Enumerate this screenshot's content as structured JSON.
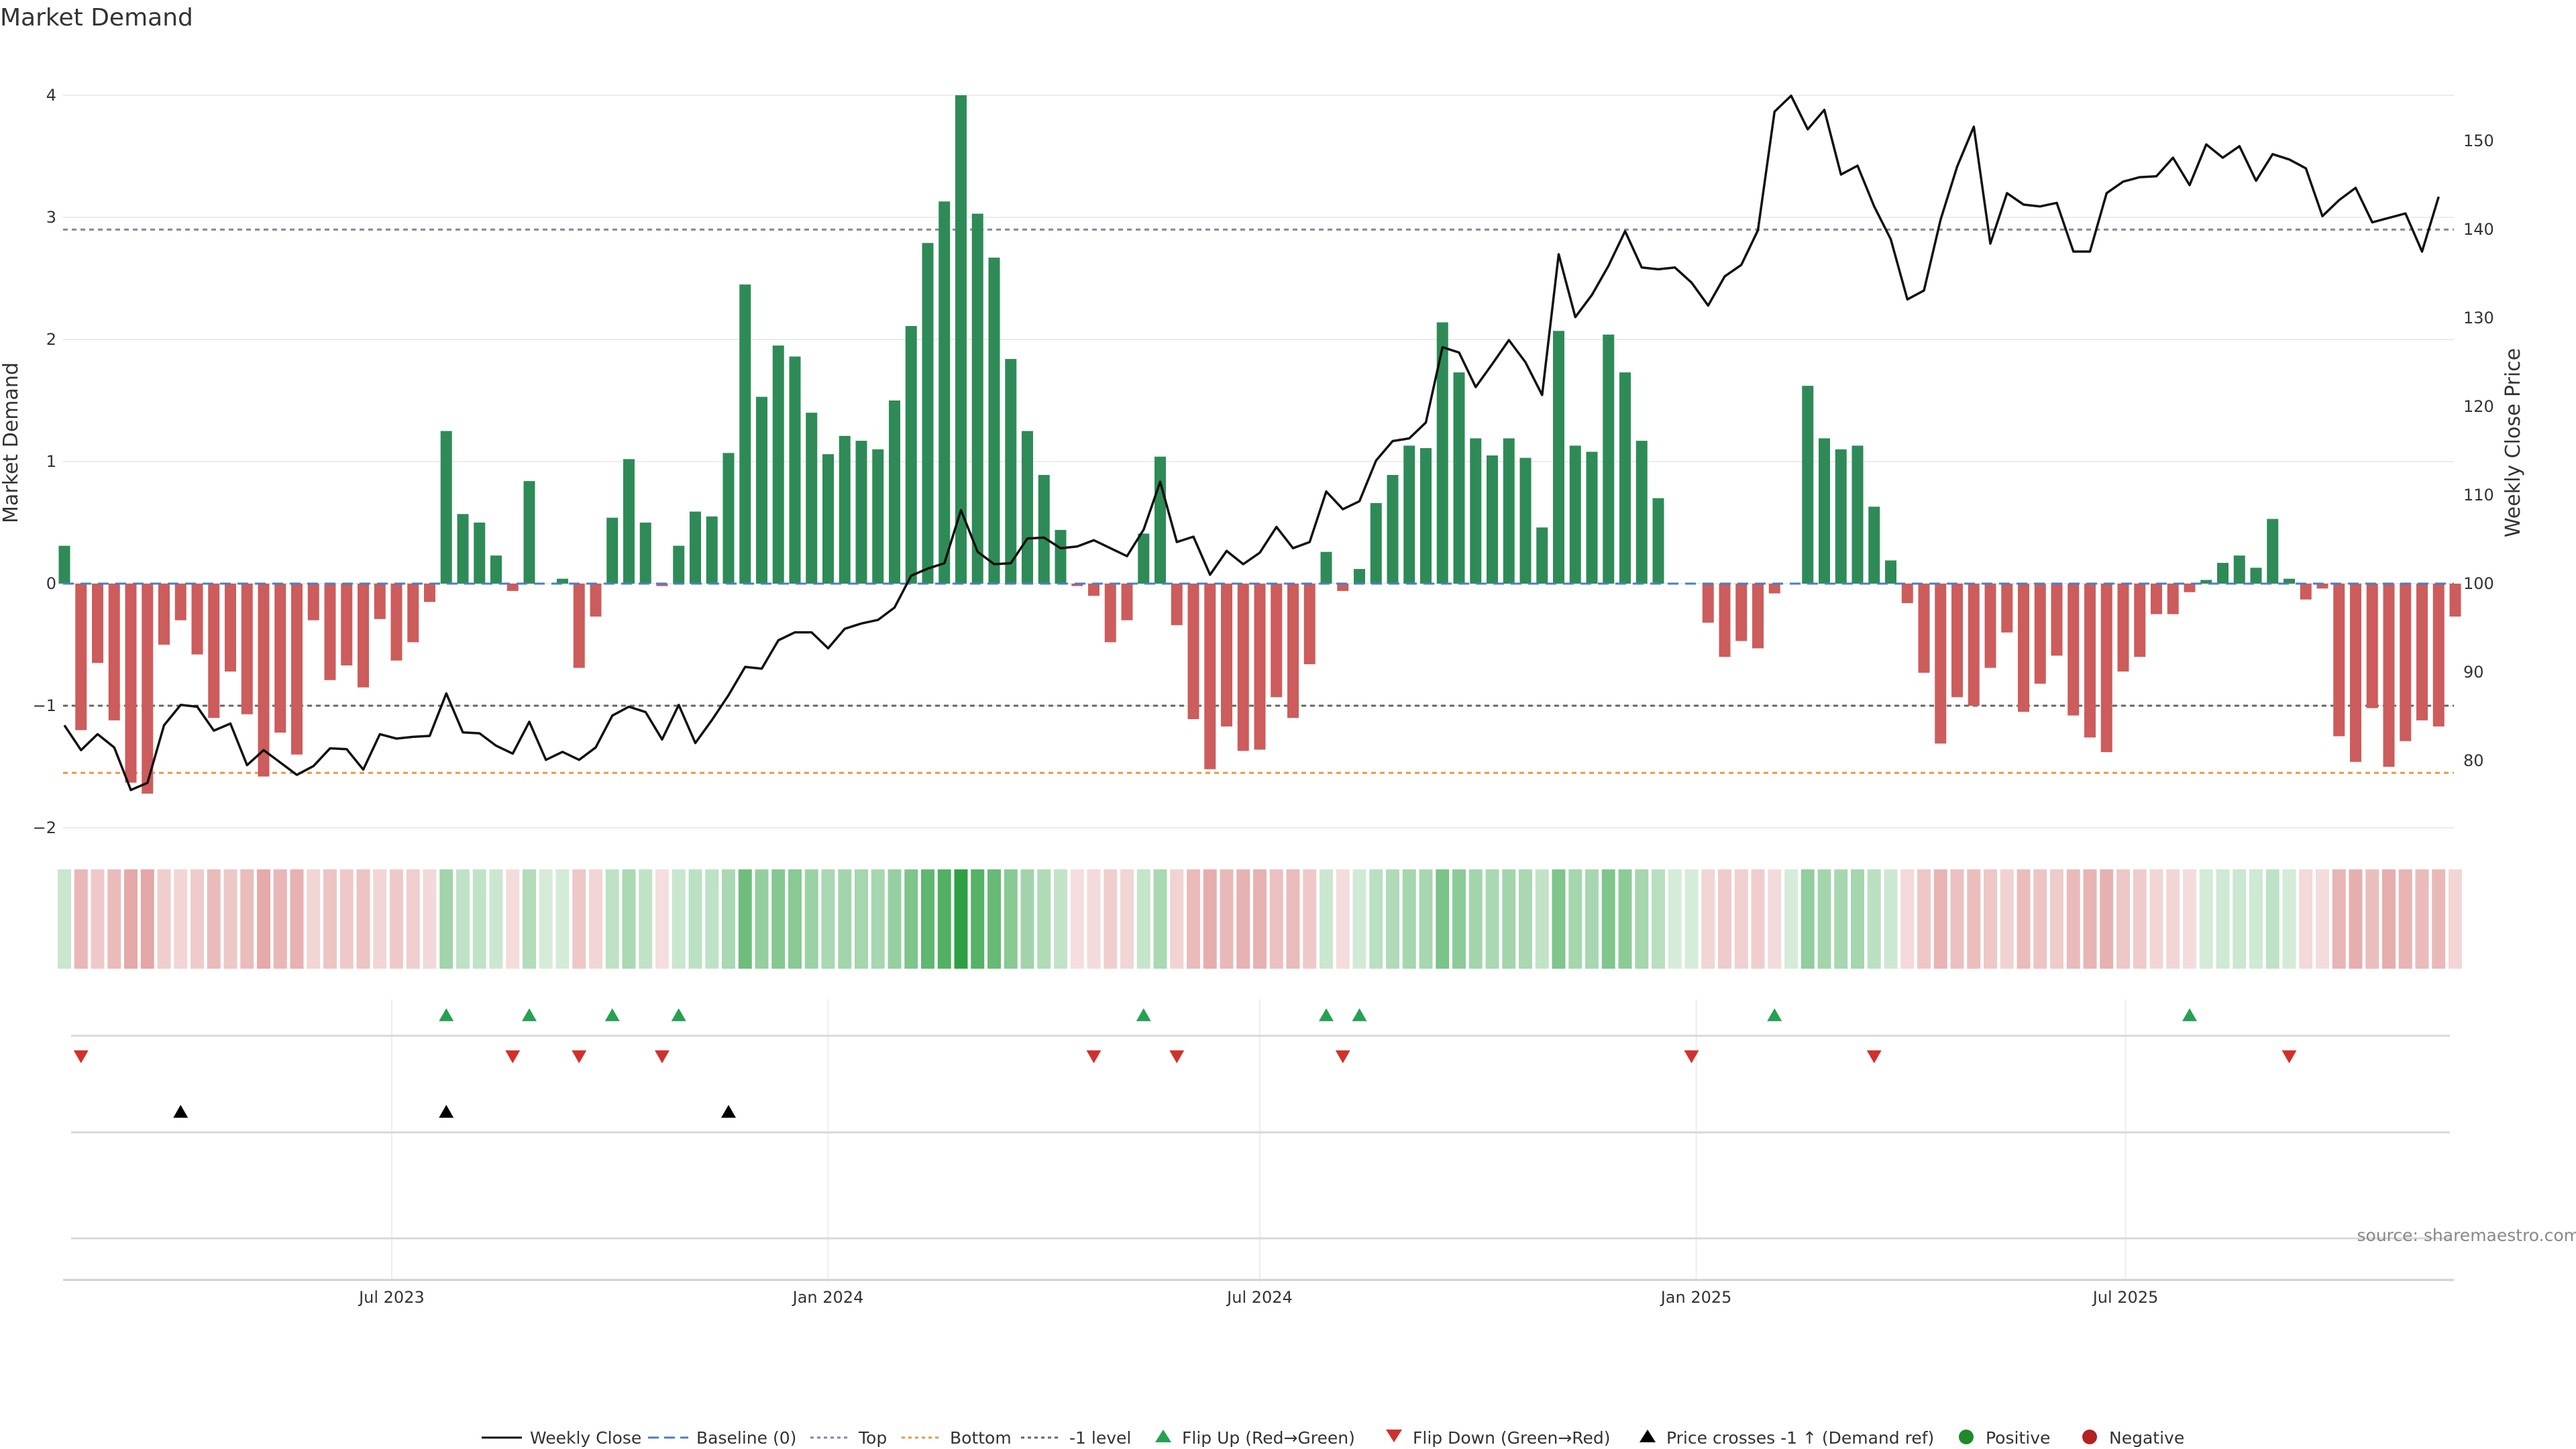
{
  "chart_data": {
    "type": "bar",
    "title": "Market Demand",
    "ylabel_left": "Market Demand",
    "ylabel_right": "Weekly Close Price",
    "source": "source: sharemaestro.com",
    "x_start_date": "2023-02-13",
    "x_step_days": 7,
    "left_ylim": [
      -2,
      4
    ],
    "left_yticks": [
      "−2",
      "−1",
      "0",
      "1",
      "2",
      "3",
      "4"
    ],
    "right_ylim": [
      72.6,
      155.3
    ],
    "right_yticks": [
      "80",
      "90",
      "100",
      "110",
      "120",
      "130",
      "140",
      "150"
    ],
    "x_ticks": [
      {
        "label": "Jul 2023",
        "date": "2023-07-01"
      },
      {
        "label": "Jan 2024",
        "date": "2024-01-01"
      },
      {
        "label": "Jul 2024",
        "date": "2024-07-01"
      },
      {
        "label": "Jan 2025",
        "date": "2025-01-01"
      },
      {
        "label": "Jul 2025",
        "date": "2025-07-01"
      }
    ],
    "reference_lines": [
      {
        "name": "Top",
        "value": 2.9,
        "color": "#8c7fa8"
      },
      {
        "name": "-1 level",
        "value": -1.0,
        "color": "#666666"
      },
      {
        "name": "Bottom",
        "value": -1.55,
        "color": "#e39a3b"
      }
    ],
    "series": [
      {
        "name": "Market Demand",
        "type": "bar",
        "values": [
          0.31,
          -1.2,
          -0.65,
          -1.12,
          -1.63,
          -1.72,
          -0.5,
          -0.3,
          -0.58,
          -1.1,
          -0.72,
          -1.07,
          -1.58,
          -1.22,
          -1.4,
          -0.3,
          -0.79,
          -0.67,
          -0.85,
          -0.29,
          -0.63,
          -0.48,
          -0.15,
          1.25,
          0.57,
          0.5,
          0.23,
          -0.06,
          0.84,
          0.0,
          0.04,
          -0.69,
          -0.27,
          0.54,
          1.02,
          0.5,
          -0.02,
          0.31,
          0.59,
          0.55,
          1.07,
          2.45,
          1.53,
          1.95,
          1.86,
          1.4,
          1.06,
          1.21,
          1.17,
          1.1,
          1.5,
          2.11,
          2.79,
          3.13,
          4.0,
          3.03,
          2.67,
          1.84,
          1.25,
          0.89,
          0.44,
          -0.02,
          -0.1,
          -0.48,
          -0.3,
          0.41,
          1.04,
          -0.34,
          -1.11,
          -1.52,
          -1.17,
          -1.37,
          -1.36,
          -0.93,
          -1.1,
          -0.66,
          0.26,
          -0.06,
          0.12,
          0.66,
          0.89,
          1.13,
          1.11,
          2.14,
          1.73,
          1.19,
          1.05,
          1.19,
          1.03,
          0.46,
          2.07,
          1.13,
          1.08,
          2.04,
          1.73,
          1.17,
          0.7,
          0.0,
          0.0,
          -0.32,
          -0.6,
          -0.47,
          -0.53,
          -0.08,
          0.0,
          1.62,
          1.19,
          1.1,
          1.13,
          0.63,
          0.19,
          -0.16,
          -0.73,
          -1.31,
          -0.93,
          -1.0,
          -0.69,
          -0.4,
          -1.05,
          -0.82,
          -0.59,
          -1.08,
          -1.26,
          -1.38,
          -0.72,
          -0.6,
          -0.25,
          -0.25,
          -0.07,
          0.03,
          0.17,
          0.23,
          0.13,
          0.53,
          0.04,
          -0.13,
          -0.04,
          -1.25,
          -1.46,
          -1.02,
          -1.5,
          -1.29,
          -1.12,
          -1.17,
          -0.27
        ]
      },
      {
        "name": "Weekly Close",
        "type": "line",
        "axis": "right",
        "values": [
          84.0,
          81.2,
          83.0,
          81.5,
          76.7,
          77.5,
          84.0,
          86.3,
          86.1,
          83.4,
          84.2,
          79.5,
          81.2,
          79.8,
          78.4,
          79.4,
          81.4,
          81.3,
          79.0,
          83.0,
          82.5,
          82.7,
          82.8,
          87.6,
          83.2,
          83.1,
          81.7,
          80.8,
          84.4,
          80.1,
          81.0,
          80.1,
          81.5,
          85.1,
          86.1,
          85.5,
          82.4,
          86.3,
          82.0,
          84.6,
          87.4,
          90.6,
          90.4,
          93.6,
          94.5,
          94.5,
          92.7,
          94.9,
          95.5,
          95.9,
          97.3,
          100.9,
          101.7,
          102.3,
          108.3,
          103.6,
          102.2,
          102.3,
          105.1,
          105.2,
          104.0,
          104.2,
          104.9,
          104.0,
          103.1,
          106.1,
          111.5,
          104.7,
          105.3,
          101.0,
          103.7,
          102.2,
          103.5,
          106.4,
          104.0,
          104.7,
          110.4,
          108.4,
          109.3,
          113.9,
          116.1,
          116.4,
          118.2,
          126.7,
          126.1,
          122.2,
          124.8,
          127.5,
          125.0,
          121.3,
          137.2,
          130.1,
          132.6,
          135.9,
          139.8,
          135.7,
          135.5,
          135.7,
          134.0,
          131.4,
          134.7,
          136.0,
          139.9,
          153.3,
          155.1,
          151.3,
          153.5,
          146.2,
          147.2,
          142.6,
          138.9,
          132.1,
          133.1,
          141.1,
          147.1,
          151.6,
          138.4,
          144.1,
          142.8,
          142.6,
          143.0,
          137.5,
          137.5,
          144.1,
          145.4,
          145.9,
          146.0,
          148.1,
          145.0,
          149.6,
          148.1,
          149.4,
          145.5,
          148.5,
          147.9,
          146.9,
          141.5,
          143.3,
          144.7,
          140.8,
          141.3,
          141.8,
          137.5,
          143.7
        ]
      }
    ],
    "flip_up_weeks": [
      23,
      28,
      33,
      37,
      65,
      76,
      78,
      103,
      128
    ],
    "flip_down_weeks": [
      1,
      27,
      31,
      36,
      62,
      67,
      77,
      98,
      109,
      134
    ],
    "price_cross_weeks": [
      7,
      23,
      40
    ],
    "legend": [
      {
        "label": "Weekly Close",
        "symbol": "line-solid",
        "color": "#111111"
      },
      {
        "label": "Baseline (0)",
        "symbol": "line-dashed",
        "color": "#4b7fc1"
      },
      {
        "label": "Top",
        "symbol": "line-dotted",
        "color": "#8c7fa8"
      },
      {
        "label": "Bottom",
        "symbol": "line-dotted",
        "color": "#e39a3b"
      },
      {
        "label": "-1 level",
        "symbol": "line-dotted",
        "color": "#666666"
      },
      {
        "label": "Flip Up (Red→Green)",
        "symbol": "triangle-up",
        "color": "#27a054"
      },
      {
        "label": "Flip Down (Green→Red)",
        "symbol": "triangle-down",
        "color": "#d0312d"
      },
      {
        "label": "Price crosses -1 ↑ (Demand ref)",
        "symbol": "triangle-up",
        "color": "#000000"
      },
      {
        "label": "Positive",
        "symbol": "circle",
        "color": "#1e8a2a"
      },
      {
        "label": "Negative",
        "symbol": "circle",
        "color": "#b22222"
      }
    ],
    "colors": {
      "positive_bar": "#2e8b57",
      "negative_bar": "#cd5c5c"
    },
    "grid": true
  }
}
